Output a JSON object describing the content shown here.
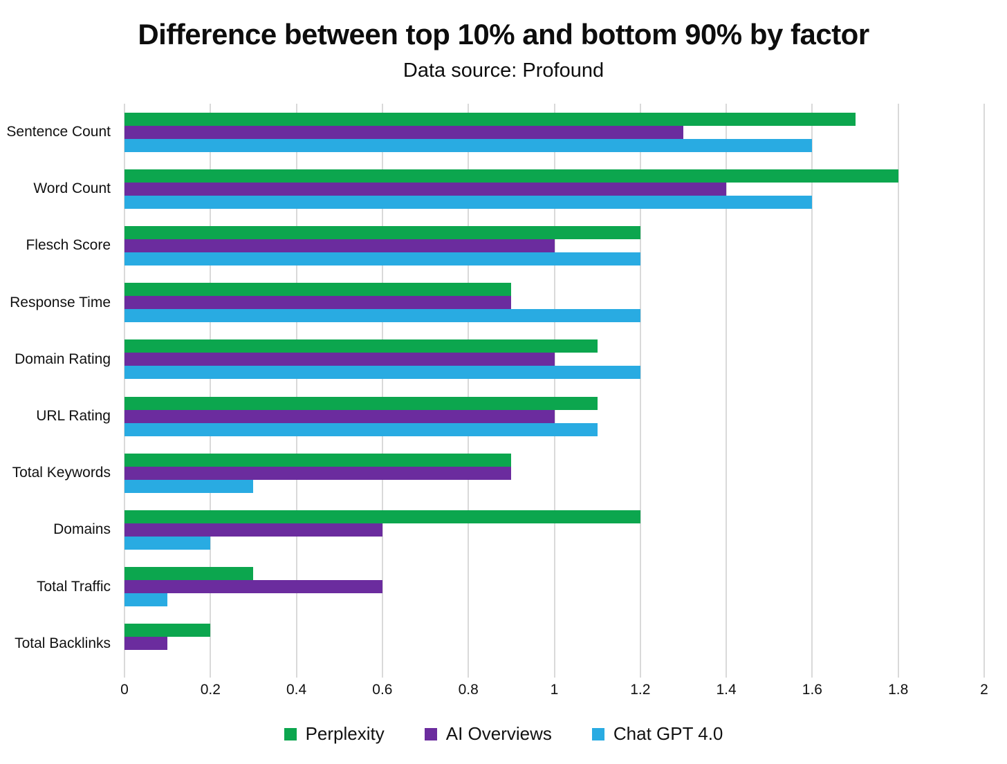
{
  "chart_data": {
    "type": "bar",
    "orientation": "horizontal",
    "title": "Difference between top 10% and bottom 90% by factor",
    "subtitle": "Data source: Profound",
    "categories": [
      "Sentence Count",
      "Word Count",
      "Flesch Score",
      "Response Time",
      "Domain Rating",
      "URL Rating",
      "Total Keywords",
      "Domains",
      "Total Traffic",
      "Total Backlinks"
    ],
    "series": [
      {
        "name": "Perplexity",
        "color": "#0ca64e",
        "values": [
          1.7,
          1.8,
          1.2,
          0.9,
          1.1,
          1.1,
          0.9,
          1.2,
          0.3,
          0.2
        ]
      },
      {
        "name": "AI Overviews",
        "color": "#6b2c9e",
        "values": [
          1.3,
          1.4,
          1.0,
          0.9,
          1.0,
          1.0,
          0.9,
          0.6,
          0.6,
          0.1
        ]
      },
      {
        "name": "Chat GPT 4.0",
        "color": "#29abe2",
        "values": [
          1.6,
          1.6,
          1.2,
          1.2,
          1.2,
          1.1,
          0.3,
          0.2,
          0.1,
          0
        ]
      }
    ],
    "xlim": [
      0,
      2
    ],
    "x_ticks": [
      0,
      0.2,
      0.4,
      0.6,
      0.8,
      1,
      1.2,
      1.4,
      1.6,
      1.8,
      2
    ],
    "x_tick_labels": [
      "0",
      "0.2",
      "0.4",
      "0.6",
      "0.8",
      "1",
      "1.2",
      "1.4",
      "1.6",
      "1.8",
      "2"
    ],
    "grid": "vertical",
    "gridline_color": "#d9d9d9",
    "legend_position": "bottom",
    "text_color": "#111111",
    "background_color": "#ffffff"
  }
}
